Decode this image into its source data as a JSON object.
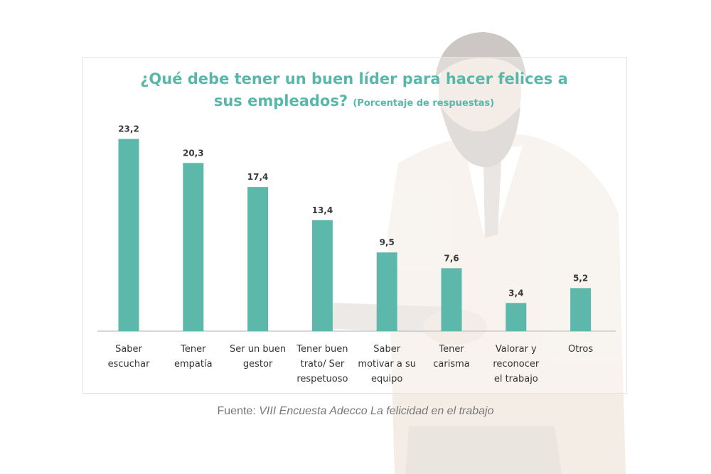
{
  "chart_data": {
    "type": "bar",
    "title": "¿Qué debe tener un buen líder para hacer felices a sus empleados?",
    "subtitle": "(Porcentaje de respuestas)",
    "categories": [
      [
        "Saber",
        "escuchar"
      ],
      [
        "Tener",
        "empatía"
      ],
      [
        "Ser un buen",
        "gestor"
      ],
      [
        "Tener buen",
        "trato/ Ser",
        "respetuoso"
      ],
      [
        "Saber",
        "motivar a su",
        "equipo"
      ],
      [
        "Tener",
        "carisma"
      ],
      [
        "Valorar y",
        "reconocer",
        "el trabajo"
      ],
      [
        "Otros"
      ]
    ],
    "values": [
      23.2,
      20.3,
      17.4,
      13.4,
      9.5,
      7.6,
      3.4,
      5.2
    ],
    "value_labels": [
      "23,2",
      "20,3",
      "17,4",
      "13,4",
      "9,5",
      "7,6",
      "3,4",
      "5,2"
    ],
    "ylim": [
      0,
      25
    ],
    "bar_color": "#5bb8ab",
    "title_color": "#57b8aa",
    "grid": false
  },
  "title": {
    "line1": "¿Qué debe tener un buen líder para hacer felices a",
    "line2": "sus empleados?",
    "subtitle": "(Porcentaje de respuestas)"
  },
  "source": {
    "prefix": "Fuente:",
    "text": "VIII Encuesta Adecco La felicidad en el trabajo"
  }
}
